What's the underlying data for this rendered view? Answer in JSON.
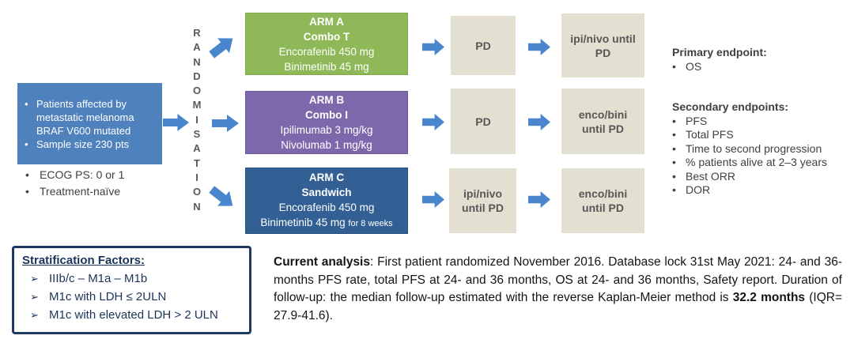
{
  "glyphs": {
    "bullet": "•",
    "chevron": "➢"
  },
  "colors": {
    "patient_box": "#4F81BD",
    "arrow": "#4A86CE",
    "arm_a": "#8FB958",
    "arm_b": "#7D68AC",
    "arm_c": "#325F94",
    "stage_box": "#E3E0D1",
    "strat_border": "#1F3864"
  },
  "patient_box": {
    "items": [
      "Patients affected by metastatic melanoma BRAF V600 mutated",
      "Sample size 230 pts"
    ]
  },
  "eligibility": {
    "items": [
      "ECOG PS: 0 or 1",
      "Treatment-naïve"
    ]
  },
  "randomisation": {
    "label": "RANDOMISATION"
  },
  "arms": [
    {
      "title": "ARM A",
      "subtitle": "Combo T",
      "drug1": "Encorafenib 450 mg",
      "drug2": "Binimetinib 45 mg",
      "note": ""
    },
    {
      "title": "ARM B",
      "subtitle": "Combo I",
      "drug1": "Ipilimumab 3 mg/kg",
      "drug2": "Nivolumab 1 mg/kg",
      "note": ""
    },
    {
      "title": "ARM C",
      "subtitle": "Sandwich",
      "drug1": "Encorafenib 450 mg",
      "drug2": "Binimetinib 45 mg",
      "note": "for 8 weeks"
    }
  ],
  "flow": [
    {
      "stage1": "PD",
      "stage2": "ipi/nivo until PD"
    },
    {
      "stage1": "PD",
      "stage2": "enco/bini until PD"
    },
    {
      "stage1": "ipi/nivo until PD",
      "stage2": "enco/bini until PD"
    }
  ],
  "endpoints": {
    "primary": {
      "heading": "Primary endpoint:",
      "items": [
        "OS"
      ]
    },
    "secondary": {
      "heading": "Secondary endpoints:",
      "items": [
        "PFS",
        "Total PFS",
        "Time to second progression",
        "% patients alive at 2–3 years",
        "Best ORR",
        "DOR"
      ]
    }
  },
  "stratification": {
    "heading": "Stratification Factors:",
    "items": [
      "IIIb/c – M1a – M1b",
      "M1c with LDH ≤ 2ULN",
      "M1c with elevated LDH > 2 ULN"
    ]
  },
  "analysis": {
    "lead": "Current analysis",
    "body": ": First patient randomized November 2016. Database lock 31st May 2021: 24- and 36-months PFS rate, total PFS at 24- and 36 months, OS at 24- and 36 months, Safety report. Duration of follow-up: the median follow-up estimated with the reverse Kaplan-Meier method is ",
    "median": "32.2 months",
    "tail": " (IQR= 27.9-41.6)."
  }
}
